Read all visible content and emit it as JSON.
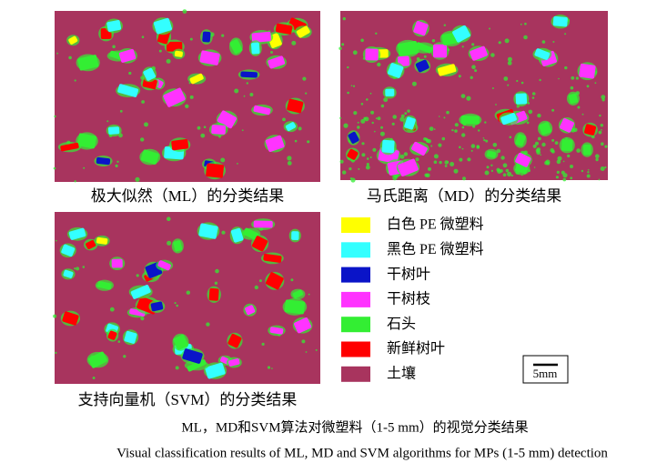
{
  "panels": [
    {
      "caption": "极大似然（ML）的分类结果"
    },
    {
      "caption": "马氏距离（MD）的分类结果"
    },
    {
      "caption": "支持向量机（SVM）的分类结果"
    }
  ],
  "legend": [
    {
      "label": "白色 PE 微塑料",
      "color": "#ffff00"
    },
    {
      "label": "黑色 PE 微塑料",
      "color": "#33ffff"
    },
    {
      "label": "干树叶",
      "color": "#0a14c8"
    },
    {
      "label": "干树枝",
      "color": "#ff33ff"
    },
    {
      "label": "石头",
      "color": "#33ee33"
    },
    {
      "label": "新鲜树叶",
      "color": "#ff0000"
    },
    {
      "label": "土壤",
      "color": "#a8345e"
    }
  ],
  "scale_bar": "5mm",
  "caption_zh": "ML，MD和SVM算法对微塑料（1-5 mm）的视觉分类结果",
  "caption_en": "Visual classification results of ML, MD and SVM algorithms for MPs (1-5 mm) detection"
}
